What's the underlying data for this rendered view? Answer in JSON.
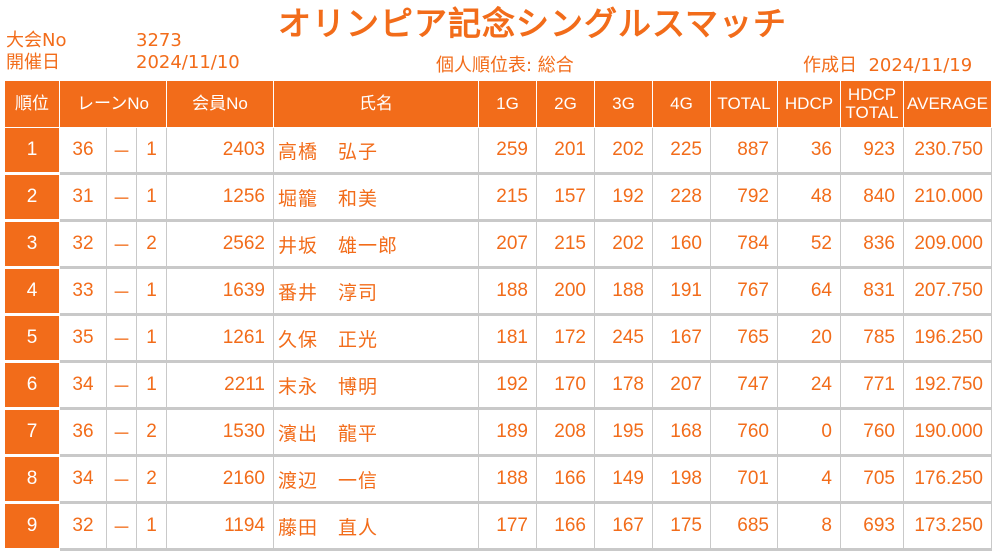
{
  "header": {
    "title": "オリンピア記念シングルスマッチ",
    "tournament_label": "大会No",
    "tournament_no": "3273",
    "date_label": "開催日",
    "date": "2024/11/10",
    "report_title": "個人順位表: 総合",
    "created_label": "作成日",
    "created_date": "2024/11/19"
  },
  "columns": {
    "rank": "順位",
    "lane": "レーンNo",
    "member": "会員No",
    "name": "氏名",
    "g1": "1G",
    "g2": "2G",
    "g3": "3G",
    "g4": "4G",
    "total": "TOTAL",
    "hdcp": "HDCP",
    "hdcp_total_1": "HDCP",
    "hdcp_total_2": "TOTAL",
    "average": "AVERAGE"
  },
  "rows": [
    {
      "rank": "1",
      "lane": "36",
      "sep": "－",
      "box": "1",
      "member": "2403",
      "name": "高橋　弘子",
      "g1": "259",
      "g2": "201",
      "g3": "202",
      "g4": "225",
      "total": "887",
      "hdcp": "36",
      "hdcp_total": "923",
      "average": "230.750"
    },
    {
      "rank": "2",
      "lane": "31",
      "sep": "－",
      "box": "1",
      "member": "1256",
      "name": "堀籠　和美",
      "g1": "215",
      "g2": "157",
      "g3": "192",
      "g4": "228",
      "total": "792",
      "hdcp": "48",
      "hdcp_total": "840",
      "average": "210.000"
    },
    {
      "rank": "3",
      "lane": "32",
      "sep": "－",
      "box": "2",
      "member": "2562",
      "name": "井坂　雄一郎",
      "g1": "207",
      "g2": "215",
      "g3": "202",
      "g4": "160",
      "total": "784",
      "hdcp": "52",
      "hdcp_total": "836",
      "average": "209.000"
    },
    {
      "rank": "4",
      "lane": "33",
      "sep": "－",
      "box": "1",
      "member": "1639",
      "name": "番井　淳司",
      "g1": "188",
      "g2": "200",
      "g3": "188",
      "g4": "191",
      "total": "767",
      "hdcp": "64",
      "hdcp_total": "831",
      "average": "207.750"
    },
    {
      "rank": "5",
      "lane": "35",
      "sep": "－",
      "box": "1",
      "member": "1261",
      "name": "久保　正光",
      "g1": "181",
      "g2": "172",
      "g3": "245",
      "g4": "167",
      "total": "765",
      "hdcp": "20",
      "hdcp_total": "785",
      "average": "196.250"
    },
    {
      "rank": "6",
      "lane": "34",
      "sep": "－",
      "box": "1",
      "member": "2211",
      "name": "末永　博明",
      "g1": "192",
      "g2": "170",
      "g3": "178",
      "g4": "207",
      "total": "747",
      "hdcp": "24",
      "hdcp_total": "771",
      "average": "192.750"
    },
    {
      "rank": "7",
      "lane": "36",
      "sep": "－",
      "box": "2",
      "member": "1530",
      "name": "濱出　龍平",
      "g1": "189",
      "g2": "208",
      "g3": "195",
      "g4": "168",
      "total": "760",
      "hdcp": "0",
      "hdcp_total": "760",
      "average": "190.000"
    },
    {
      "rank": "8",
      "lane": "34",
      "sep": "－",
      "box": "2",
      "member": "2160",
      "name": "渡辺　一信",
      "g1": "188",
      "g2": "166",
      "g3": "149",
      "g4": "198",
      "total": "701",
      "hdcp": "4",
      "hdcp_total": "705",
      "average": "176.250"
    },
    {
      "rank": "9",
      "lane": "32",
      "sep": "－",
      "box": "1",
      "member": "1194",
      "name": "藤田　直人",
      "g1": "177",
      "g2": "166",
      "g3": "167",
      "g4": "175",
      "total": "685",
      "hdcp": "8",
      "hdcp_total": "693",
      "average": "173.250"
    }
  ],
  "colors": {
    "accent": "#f26c1a",
    "grid": "#c9c9c9",
    "background": "#ffffff"
  }
}
